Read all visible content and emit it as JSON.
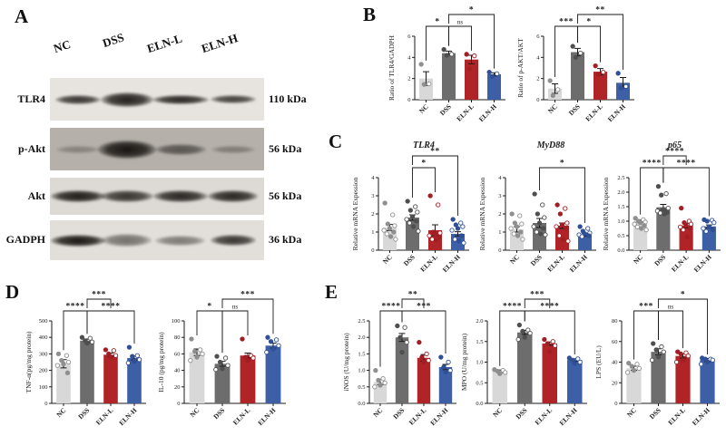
{
  "panels": {
    "a": "A",
    "b": "B",
    "c": "C",
    "d": "D",
    "e": "E"
  },
  "colors": {
    "bars": [
      "#d8d8d8",
      "#6d6d6d",
      "#b02428",
      "#3d5fa5"
    ],
    "points": [
      "#8f8f8f",
      "#4f4f4f",
      "#a11f24",
      "#2f4f96"
    ],
    "axis": "#1a1a1a"
  },
  "categories": [
    "NC",
    "DSS",
    "ELN-L",
    "ELN-H"
  ],
  "western_blot": {
    "lanes": [
      "NC",
      "DSS",
      "ELN-L",
      "ELN-H"
    ],
    "rows": [
      {
        "protein": "TLR4",
        "mw": "110 kDa",
        "bg": "#e7e4df",
        "bands": [
          [
            0.85,
            50,
            10
          ],
          [
            0.95,
            58,
            16
          ],
          [
            0.92,
            62,
            10
          ],
          [
            0.8,
            50,
            9
          ]
        ]
      },
      {
        "protein": "p-Akt",
        "mw": "56 kDa",
        "bg": "#b5b0aa",
        "bands": [
          [
            0.3,
            48,
            8
          ],
          [
            1.0,
            64,
            20
          ],
          [
            0.6,
            56,
            12
          ],
          [
            0.35,
            48,
            8
          ]
        ]
      },
      {
        "protein": "Akt",
        "mw": "56 kDa",
        "bg": "#ddd9d4",
        "bands": [
          [
            0.97,
            60,
            13
          ],
          [
            0.85,
            58,
            13
          ],
          [
            0.92,
            60,
            13
          ],
          [
            0.92,
            55,
            13
          ]
        ]
      },
      {
        "protein": "GADPH",
        "mw": "36 kDa",
        "bg": "#e2dfda",
        "bands": [
          [
            1.0,
            60,
            13
          ],
          [
            0.55,
            55,
            14
          ],
          [
            0.5,
            55,
            11
          ],
          [
            0.85,
            50,
            12
          ]
        ]
      }
    ]
  },
  "chart_data": [
    {
      "id": "b1",
      "type": "bar",
      "title": "",
      "ylabel": "Ratio of TLR4/GADPH",
      "ylim": [
        0,
        6
      ],
      "yticks": [
        0,
        2,
        4,
        6
      ],
      "ytick_labels": [
        "0",
        "2",
        "4",
        "6"
      ],
      "categories": [
        "NC",
        "DSS",
        "ELN-L",
        "ELN-H"
      ],
      "values": [
        2.0,
        4.4,
        3.8,
        2.4
      ],
      "errors": [
        0.65,
        0.2,
        0.4,
        0.15
      ],
      "points": [
        [
          3.35,
          1.5,
          1.45
        ],
        [
          4.75,
          4.3,
          4.2
        ],
        [
          4.3,
          4.15,
          2.9
        ],
        [
          2.6,
          2.45,
          2.2
        ]
      ],
      "brackets": [
        {
          "from": 0,
          "to": 1,
          "label": "*",
          "level": 0
        },
        {
          "from": 1,
          "to": 2,
          "label": "ns",
          "level": 0
        },
        {
          "from": 1,
          "to": 3,
          "label": "*",
          "level": 1
        }
      ]
    },
    {
      "id": "b2",
      "type": "bar",
      "title": "",
      "ylabel": "Ratio of p-AKT/AKT",
      "ylim": [
        0,
        6
      ],
      "yticks": [
        0,
        2,
        4,
        6
      ],
      "ytick_labels": [
        "0",
        "2",
        "4",
        "6"
      ],
      "categories": [
        "NC",
        "DSS",
        "ELN-L",
        "ELN-H"
      ],
      "values": [
        1.05,
        4.5,
        2.65,
        1.6
      ],
      "errors": [
        0.45,
        0.35,
        0.3,
        0.5
      ],
      "points": [
        [
          1.8,
          0.95,
          0.4
        ],
        [
          5.05,
          4.4,
          4.0
        ],
        [
          3.2,
          2.6,
          2.4
        ],
        [
          2.5,
          1.25,
          1.1
        ]
      ],
      "brackets": [
        {
          "from": 0,
          "to": 1,
          "label": "***",
          "level": 0
        },
        {
          "from": 1,
          "to": 2,
          "label": "*",
          "level": 0
        },
        {
          "from": 1,
          "to": 3,
          "label": "**",
          "level": 1
        }
      ]
    },
    {
      "id": "c1",
      "type": "bar",
      "title": "TLR4",
      "ylabel": "Relative mRNA Expession",
      "ylim": [
        0,
        4
      ],
      "yticks": [
        0,
        1,
        2,
        3,
        4
      ],
      "ytick_labels": [
        "0",
        "1",
        "2",
        "3",
        "4"
      ],
      "categories": [
        "NC",
        "DSS",
        "ELN-L",
        "ELN-H"
      ],
      "values": [
        1.25,
        1.8,
        1.1,
        0.9
      ],
      "errors": [
        0.17,
        0.15,
        0.3,
        0.12
      ],
      "points": [
        [
          2.6,
          1.95,
          1.45,
          1.35,
          1.2,
          1.1,
          1.0,
          0.9,
          0.75,
          0.6
        ],
        [
          2.7,
          2.4,
          2.2,
          2.1,
          1.85,
          1.7,
          1.6,
          1.5,
          1.3,
          1.05
        ],
        [
          3.0,
          2.5,
          1.0,
          0.95,
          0.85,
          0.8,
          0.7,
          0.6,
          0.55
        ],
        [
          1.7,
          1.5,
          1.4,
          1.3,
          1.2,
          1.1,
          0.8,
          0.6,
          0.5,
          0.4
        ]
      ],
      "brackets": [
        {
          "from": 1,
          "to": 2,
          "label": "*",
          "level": 0
        },
        {
          "from": 1,
          "to": 3,
          "label": "**",
          "level": 1
        }
      ]
    },
    {
      "id": "c2",
      "type": "bar",
      "title": "MyD88",
      "ylabel": "Relative mRNA Expession",
      "ylim": [
        0,
        4
      ],
      "yticks": [
        0,
        1,
        2,
        3,
        4
      ],
      "ytick_labels": [
        "0",
        "1",
        "2",
        "3",
        "4"
      ],
      "categories": [
        "NC",
        "DSS",
        "ELN-L",
        "ELN-H"
      ],
      "values": [
        1.15,
        1.5,
        1.35,
        0.85
      ],
      "errors": [
        0.15,
        0.25,
        0.15,
        0.08
      ],
      "points": [
        [
          2.0,
          1.9,
          1.5,
          1.45,
          1.3,
          1.2,
          1.0,
          0.9,
          0.8,
          0.6
        ],
        [
          3.1,
          2.5,
          2.0,
          1.8,
          1.5,
          1.3,
          1.2,
          1.0,
          0.9,
          0.85
        ],
        [
          2.5,
          2.3,
          2.0,
          1.5,
          1.4,
          1.3,
          1.2,
          0.8,
          0.6,
          0.5
        ],
        [
          1.3,
          1.2,
          1.05,
          0.95,
          0.9,
          0.85,
          0.8,
          0.75
        ]
      ],
      "brackets": [
        {
          "from": 1,
          "to": 3,
          "label": "*",
          "level": 0
        }
      ]
    },
    {
      "id": "c3",
      "type": "bar",
      "title": "p65",
      "ylabel": "Relative mRNA Expession",
      "ylim": [
        0,
        2.5
      ],
      "yticks": [
        0,
        0.5,
        1.0,
        1.5,
        2.0,
        2.5
      ],
      "ytick_labels": [
        "0.0",
        "0.5",
        "1.0",
        "1.5",
        "2.0",
        "2.5"
      ],
      "categories": [
        "NC",
        "DSS",
        "ELN-L",
        "ELN-H"
      ],
      "values": [
        1.0,
        1.48,
        0.85,
        0.82
      ],
      "errors": [
        0.04,
        0.1,
        0.08,
        0.05
      ],
      "points": [
        [
          1.1,
          1.05,
          1.0,
          0.97,
          0.95,
          0.9,
          0.85,
          0.8,
          0.75,
          0.7
        ],
        [
          2.2,
          1.95,
          1.9,
          1.45,
          1.4,
          1.35,
          1.3,
          1.28,
          1.25
        ],
        [
          1.45,
          1.0,
          0.95,
          0.9,
          0.85,
          0.8,
          0.75,
          0.7,
          0.45
        ],
        [
          1.05,
          1.03,
          1.0,
          0.95,
          0.8,
          0.75,
          0.7,
          0.65
        ]
      ],
      "brackets": [
        {
          "from": 0,
          "to": 1,
          "label": "****",
          "level": 0
        },
        {
          "from": 1,
          "to": 3,
          "label": "****",
          "level": 0
        },
        {
          "from": 1,
          "to": 2,
          "label": "****",
          "level": 1
        }
      ]
    },
    {
      "id": "d1",
      "type": "bar",
      "title": "",
      "ylabel": "TNF-α(pg/mg protein)",
      "ylim": [
        0,
        500
      ],
      "yticks": [
        0,
        100,
        200,
        300,
        400,
        500
      ],
      "ytick_labels": [
        "0",
        "100",
        "200",
        "300",
        "400",
        "500"
      ],
      "categories": [
        "NC",
        "DSS",
        "ELN-L",
        "ELN-H"
      ],
      "values": [
        240,
        380,
        295,
        275
      ],
      "errors": [
        25,
        10,
        10,
        12
      ],
      "points": [
        [
          300,
          290,
          260,
          250,
          240,
          230,
          185
        ],
        [
          400,
          395,
          380,
          372,
          365
        ],
        [
          325,
          320,
          300,
          290,
          280
        ],
        [
          340,
          290,
          285,
          265,
          255,
          245
        ]
      ],
      "brackets": [
        {
          "from": 0,
          "to": 1,
          "label": "****",
          "level": 0
        },
        {
          "from": 1,
          "to": 3,
          "label": "****",
          "level": 0
        },
        {
          "from": 1,
          "to": 2,
          "label": "***",
          "level": 1
        }
      ]
    },
    {
      "id": "d2",
      "type": "bar",
      "title": "",
      "ylabel": "IL-10 (pg/mg protein)",
      "ylim": [
        0,
        100
      ],
      "yticks": [
        0,
        20,
        40,
        60,
        80,
        100
      ],
      "ytick_labels": [
        "0",
        "20",
        "40",
        "60",
        "80",
        "100"
      ],
      "categories": [
        "NC",
        "DSS",
        "ELN-L",
        "ELN-H"
      ],
      "values": [
        62,
        48,
        58,
        70
      ],
      "errors": [
        4,
        3,
        3,
        3
      ],
      "points": [
        [
          78,
          65,
          63,
          60,
          56,
          52
        ],
        [
          57,
          55,
          50,
          46,
          42,
          41
        ],
        [
          78,
          58,
          56,
          55,
          52
        ],
        [
          80,
          77,
          75,
          70,
          66,
          62
        ]
      ],
      "brackets": [
        {
          "from": 0,
          "to": 1,
          "label": "*",
          "level": 0
        },
        {
          "from": 1,
          "to": 2,
          "label": "ns",
          "level": 0
        },
        {
          "from": 1,
          "to": 3,
          "label": "***",
          "level": 1
        }
      ]
    },
    {
      "id": "e1",
      "type": "bar",
      "title": "",
      "ylabel": "iNOS (U/mg protein)",
      "ylim": [
        0,
        2.5
      ],
      "yticks": [
        0,
        0.5,
        1.0,
        1.5,
        2.0,
        2.5
      ],
      "ytick_labels": [
        "0.0",
        "0.5",
        "1.0",
        "1.5",
        "2.0",
        "2.5"
      ],
      "categories": [
        "NC",
        "DSS",
        "ELN-L",
        "ELN-H"
      ],
      "values": [
        0.65,
        2.0,
        1.38,
        1.1
      ],
      "errors": [
        0.08,
        0.12,
        0.1,
        0.08
      ],
      "points": [
        [
          1.0,
          0.75,
          0.7,
          0.62,
          0.55,
          0.5
        ],
        [
          2.35,
          2.3,
          2.0,
          1.85,
          1.55
        ],
        [
          1.85,
          1.5,
          1.4,
          1.3,
          1.25
        ],
        [
          1.4,
          1.25,
          1.1,
          1.0,
          0.95
        ]
      ],
      "brackets": [
        {
          "from": 0,
          "to": 1,
          "label": "****",
          "level": 0
        },
        {
          "from": 1,
          "to": 3,
          "label": "***",
          "level": 0
        },
        {
          "from": 1,
          "to": 2,
          "label": "**",
          "level": 1
        }
      ]
    },
    {
      "id": "e2",
      "type": "bar",
      "title": "",
      "ylabel": "MPO (U/mg protein)",
      "ylim": [
        0,
        2.0
      ],
      "yticks": [
        0,
        0.5,
        1.0,
        1.5,
        2.0
      ],
      "ytick_labels": [
        "0.0",
        "0.5",
        "1.0",
        "1.5",
        "2.0"
      ],
      "categories": [
        "NC",
        "DSS",
        "ELN-L",
        "ELN-H"
      ],
      "values": [
        0.78,
        1.72,
        1.45,
        1.05
      ],
      "errors": [
        0.03,
        0.05,
        0.04,
        0.03
      ],
      "points": [
        [
          0.82,
          0.8,
          0.78,
          0.75,
          0.72
        ],
        [
          1.9,
          1.78,
          1.75,
          1.7,
          1.6,
          1.55
        ],
        [
          1.55,
          1.5,
          1.45,
          1.4,
          1.25
        ],
        [
          1.1,
          1.08,
          1.05,
          1.0,
          0.97
        ]
      ],
      "brackets": [
        {
          "from": 0,
          "to": 1,
          "label": "****",
          "level": 0
        },
        {
          "from": 1,
          "to": 3,
          "label": "****",
          "level": 0
        },
        {
          "from": 1,
          "to": 2,
          "label": "***",
          "level": 1
        }
      ]
    },
    {
      "id": "e3",
      "type": "bar",
      "title": "",
      "ylabel": "LPS (EU/L)",
      "ylim": [
        0,
        80
      ],
      "yticks": [
        0,
        20,
        40,
        60,
        80
      ],
      "ytick_labels": [
        "0",
        "20",
        "40",
        "60",
        "80"
      ],
      "categories": [
        "NC",
        "DSS",
        "ELN-L",
        "ELN-H"
      ],
      "values": [
        34,
        50,
        46,
        42
      ],
      "errors": [
        2,
        3,
        2,
        1.5
      ],
      "points": [
        [
          39,
          38,
          36,
          34,
          32,
          30
        ],
        [
          58,
          55,
          52,
          50,
          45,
          42
        ],
        [
          50,
          49,
          48,
          46,
          42,
          40
        ],
        [
          44,
          43,
          43,
          42,
          40,
          38
        ]
      ],
      "brackets": [
        {
          "from": 0,
          "to": 1,
          "label": "***",
          "level": 0
        },
        {
          "from": 1,
          "to": 2,
          "label": "ns",
          "level": 0
        },
        {
          "from": 1,
          "to": 3,
          "label": "*",
          "level": 1
        }
      ]
    }
  ]
}
